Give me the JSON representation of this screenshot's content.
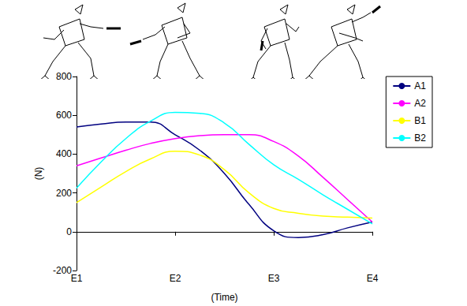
{
  "chart_data": {
    "type": "line",
    "x_label": "(Time)",
    "y_label": "(N)",
    "categories": [
      "E1",
      null,
      null,
      null,
      "E2",
      null,
      null,
      null,
      "E3",
      null,
      null,
      null,
      "E4"
    ],
    "series": [
      {
        "name": "A1",
        "color": "#000080",
        "values": [
          540,
          555,
          565,
          565,
          500,
          420,
          300,
          140,
          5,
          -30,
          -15,
          20,
          50
        ]
      },
      {
        "name": "A2",
        "color": "#ff00ff",
        "values": [
          340,
          380,
          420,
          455,
          480,
          495,
          500,
          500,
          465,
          390,
          280,
          165,
          50
        ]
      },
      {
        "name": "B1",
        "color": "#ffff00",
        "values": [
          150,
          230,
          310,
          375,
          415,
          395,
          320,
          200,
          120,
          95,
          80,
          75,
          70
        ]
      },
      {
        "name": "B2",
        "color": "#00ffff",
        "values": [
          225,
          360,
          480,
          570,
          615,
          610,
          560,
          450,
          345,
          270,
          190,
          115,
          40
        ]
      }
    ],
    "ylim": [
      -200,
      800
    ],
    "yticks": [
      -200,
      0,
      200,
      400,
      600,
      800
    ],
    "grid": false,
    "legend": "right",
    "marker": "none",
    "line_style": "solid"
  }
}
